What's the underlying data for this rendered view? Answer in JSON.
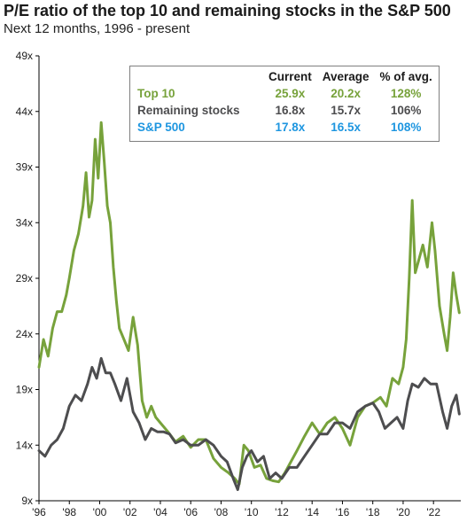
{
  "title": "P/E ratio of the top 10 and remaining stocks in the S&P 500",
  "subtitle": "Next 12 months, 1996 - present",
  "colors": {
    "top10": "#77a23b",
    "remaining": "#4d4d4f",
    "sp500": "#1e96e0",
    "axis": "#000000"
  },
  "legend": {
    "headers": [
      "Current",
      "Average",
      "% of avg."
    ],
    "rows": [
      {
        "name": "Top 10",
        "current": "25.9x",
        "average": "20.2x",
        "pct": "128%",
        "color": "#77a23b"
      },
      {
        "name": "Remaining stocks",
        "current": "16.8x",
        "average": "15.7x",
        "pct": "106%",
        "color": "#4d4d4f"
      },
      {
        "name": "S&P 500",
        "current": "17.8x",
        "average": "16.5x",
        "pct": "108%",
        "color": "#1e96e0"
      }
    ]
  },
  "chart_data": {
    "type": "line",
    "title": "P/E ratio of the top 10 and remaining stocks in the S&P 500",
    "subtitle": "Next 12 months, 1996 - present",
    "xlabel": "",
    "ylabel": "",
    "xlim": [
      1996,
      2023.8
    ],
    "ylim": [
      9,
      49
    ],
    "yticks": [
      9,
      14,
      19,
      24,
      29,
      34,
      39,
      44,
      49
    ],
    "ytick_labels": [
      "9x",
      "14x",
      "19x",
      "24x",
      "29x",
      "34x",
      "39x",
      "44x",
      "49x"
    ],
    "xticks": [
      1996,
      1998,
      2000,
      2002,
      2004,
      2006,
      2008,
      2010,
      2012,
      2014,
      2016,
      2018,
      2020,
      2022
    ],
    "xtick_labels": [
      "'96",
      "'98",
      "'00",
      "'02",
      "'04",
      "'06",
      "'08",
      "'10",
      "'12",
      "'14",
      "'16",
      "'18",
      "'20",
      "'22"
    ],
    "grid": false,
    "legend_position": "top-right",
    "series": [
      {
        "name": "Top 10",
        "color": "#77a23b",
        "x": [
          1996.0,
          1996.3,
          1996.6,
          1996.9,
          1997.2,
          1997.5,
          1997.8,
          1998.0,
          1998.3,
          1998.6,
          1998.9,
          1999.1,
          1999.3,
          1999.5,
          1999.7,
          1999.9,
          2000.1,
          2000.3,
          2000.5,
          2000.7,
          2000.9,
          2001.1,
          2001.3,
          2001.6,
          2001.9,
          2002.2,
          2002.5,
          2002.8,
          2003.1,
          2003.4,
          2003.7,
          2004.0,
          2004.5,
          2005.0,
          2005.5,
          2006.0,
          2006.5,
          2007.0,
          2007.5,
          2008.0,
          2008.5,
          2008.9,
          2009.2,
          2009.5,
          2009.8,
          2010.2,
          2010.6,
          2011.0,
          2011.4,
          2011.8,
          2012.2,
          2012.6,
          2013.0,
          2013.5,
          2014.0,
          2014.5,
          2015.0,
          2015.5,
          2016.0,
          2016.5,
          2017.0,
          2017.5,
          2018.0,
          2018.5,
          2018.9,
          2019.3,
          2019.7,
          2020.0,
          2020.2,
          2020.4,
          2020.6,
          2020.8,
          2021.0,
          2021.3,
          2021.6,
          2021.9,
          2022.1,
          2022.4,
          2022.7,
          2022.9,
          2023.1,
          2023.3,
          2023.5,
          2023.7
        ],
        "y": [
          21.0,
          23.5,
          22.0,
          24.5,
          26.0,
          26.0,
          27.5,
          29.0,
          31.5,
          33.0,
          35.5,
          38.5,
          34.5,
          36.0,
          41.5,
          38.0,
          43.0,
          39.5,
          35.5,
          34.0,
          30.0,
          27.0,
          24.5,
          23.5,
          22.5,
          25.5,
          23.0,
          18.0,
          16.5,
          17.5,
          16.5,
          16.0,
          15.2,
          14.3,
          14.8,
          13.8,
          14.5,
          14.5,
          12.8,
          12.0,
          11.5,
          11.0,
          10.5,
          14.0,
          13.5,
          12.0,
          12.2,
          11.0,
          10.8,
          10.7,
          11.5,
          12.5,
          13.5,
          14.8,
          16.0,
          15.0,
          16.0,
          16.5,
          15.5,
          14.0,
          16.5,
          17.5,
          17.8,
          18.3,
          17.5,
          20.0,
          19.5,
          21.0,
          23.5,
          29.0,
          36.0,
          29.5,
          30.5,
          32.0,
          30.0,
          34.0,
          31.5,
          26.5,
          24.0,
          22.5,
          25.5,
          29.5,
          27.5,
          25.9
        ]
      },
      {
        "name": "Remaining stocks",
        "color": "#4d4d4f",
        "x": [
          1996.0,
          1996.4,
          1996.8,
          1997.2,
          1997.6,
          1998.0,
          1998.4,
          1998.8,
          1999.2,
          1999.5,
          1999.8,
          2000.1,
          2000.4,
          2000.7,
          2001.0,
          2001.4,
          2001.8,
          2002.2,
          2002.6,
          2003.0,
          2003.4,
          2003.8,
          2004.2,
          2004.6,
          2005.0,
          2005.5,
          2006.0,
          2006.5,
          2007.0,
          2007.5,
          2008.0,
          2008.4,
          2008.8,
          2009.1,
          2009.4,
          2009.7,
          2010.0,
          2010.4,
          2010.8,
          2011.2,
          2011.6,
          2012.0,
          2012.5,
          2013.0,
          2013.5,
          2014.0,
          2014.5,
          2015.0,
          2015.5,
          2016.0,
          2016.5,
          2017.0,
          2017.5,
          2018.0,
          2018.4,
          2018.8,
          2019.2,
          2019.6,
          2020.0,
          2020.3,
          2020.6,
          2021.0,
          2021.4,
          2021.8,
          2022.2,
          2022.6,
          2022.9,
          2023.2,
          2023.5,
          2023.7
        ],
        "y": [
          13.5,
          13.0,
          14.0,
          14.5,
          15.5,
          17.5,
          18.5,
          18.0,
          19.5,
          21.0,
          20.0,
          21.8,
          20.5,
          20.5,
          19.5,
          18.0,
          20.0,
          17.0,
          16.0,
          14.5,
          15.5,
          15.2,
          15.2,
          15.0,
          14.2,
          14.5,
          14.0,
          14.0,
          14.5,
          14.0,
          13.0,
          12.5,
          11.0,
          10.0,
          12.0,
          13.0,
          13.5,
          12.5,
          13.0,
          11.0,
          11.5,
          11.0,
          12.0,
          12.0,
          13.0,
          14.0,
          15.0,
          15.0,
          16.0,
          16.0,
          15.5,
          17.0,
          17.5,
          17.8,
          17.0,
          15.5,
          16.0,
          16.5,
          15.5,
          18.0,
          19.5,
          19.2,
          20.0,
          19.5,
          19.5,
          17.0,
          15.5,
          17.5,
          18.5,
          16.8
        ]
      }
    ]
  }
}
